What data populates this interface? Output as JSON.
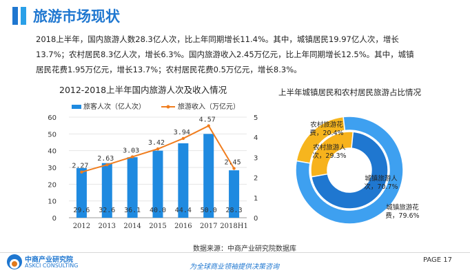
{
  "header": {
    "title": "旅游市场现状"
  },
  "paragraph": {
    "lines": [
      "2018上半年，国内旅游人数28.3亿人次，比上年同期增长11.4%。其中，城镇居民19.97亿人次，增长",
      "13.7%；农村居民8.3亿人次，增长6.3%。国内旅游收入2.45万亿元，比上年同期增长12.5%。其中，城镇",
      "居民花费1.95万亿元，增长13.7%；农村居民花费0.5万亿元，增长8.3%。"
    ]
  },
  "colors": {
    "accent": "#1f77d0",
    "bar": "#1f8ae0",
    "line": "#f07d1e",
    "pie_inner_blue": "#1f77d0",
    "pie_inner_orange": "#f7b21c",
    "pie_outer_blue": "#3ea0f0",
    "pie_outer_orange": "#f6b51e"
  },
  "chart_data": [
    {
      "type": "bar",
      "title": "2012-2018上半年国内旅游人次及收入情况",
      "categories": [
        "2012",
        "2013",
        "2014",
        "2015",
        "2016",
        "2017",
        "2018H1"
      ],
      "series": [
        {
          "name": "旅客人次（亿人次）",
          "axis": "left",
          "kind": "bar",
          "values": [
            29.6,
            32.6,
            36.1,
            40.0,
            44.4,
            50.0,
            28.3
          ],
          "value_labels": [
            "29.6",
            "32.6",
            "36.1",
            "40.0",
            "44.4",
            "50.0",
            "28.3"
          ]
        },
        {
          "name": "旅游收入（万亿元）",
          "axis": "right",
          "kind": "line",
          "values": [
            2.27,
            2.63,
            3.03,
            3.42,
            3.94,
            4.57,
            2.45
          ],
          "value_labels": [
            "2.27",
            "2.63",
            "3.03",
            "3.42",
            "3.94",
            "4.57",
            "2.45"
          ]
        }
      ],
      "left_axis": {
        "ylim": [
          0,
          60
        ],
        "ticks": [
          "0",
          "10",
          "20",
          "30",
          "40",
          "50",
          "60"
        ]
      },
      "right_axis": {
        "ylim": [
          0,
          5
        ],
        "ticks": [
          "0",
          "1",
          "2",
          "3",
          "4",
          "5"
        ]
      },
      "legend": "top"
    },
    {
      "type": "pie",
      "title": "上半年城镇居民和农村居民旅游占比情况",
      "rings": [
        {
          "name": "inner",
          "slices": [
            {
              "label": "城镇旅游人次，70.7%",
              "value": 70.7
            },
            {
              "label": "农村旅游人次，29.3%",
              "value": 29.3
            }
          ]
        },
        {
          "name": "outer",
          "slices": [
            {
              "label": "城镇旅游花费，79.6%",
              "value": 79.6
            },
            {
              "label": "农村旅游花费，20.4%",
              "value": 20.4
            }
          ]
        }
      ]
    }
  ],
  "footer": {
    "source": "数据来源：中商产业研究院数据库",
    "slogan": "为全球商业领袖提供决策咨询",
    "page": "PAGE  17",
    "logo_cn": "中商产业研究院",
    "logo_en": "ASKCI CONSULTING"
  }
}
